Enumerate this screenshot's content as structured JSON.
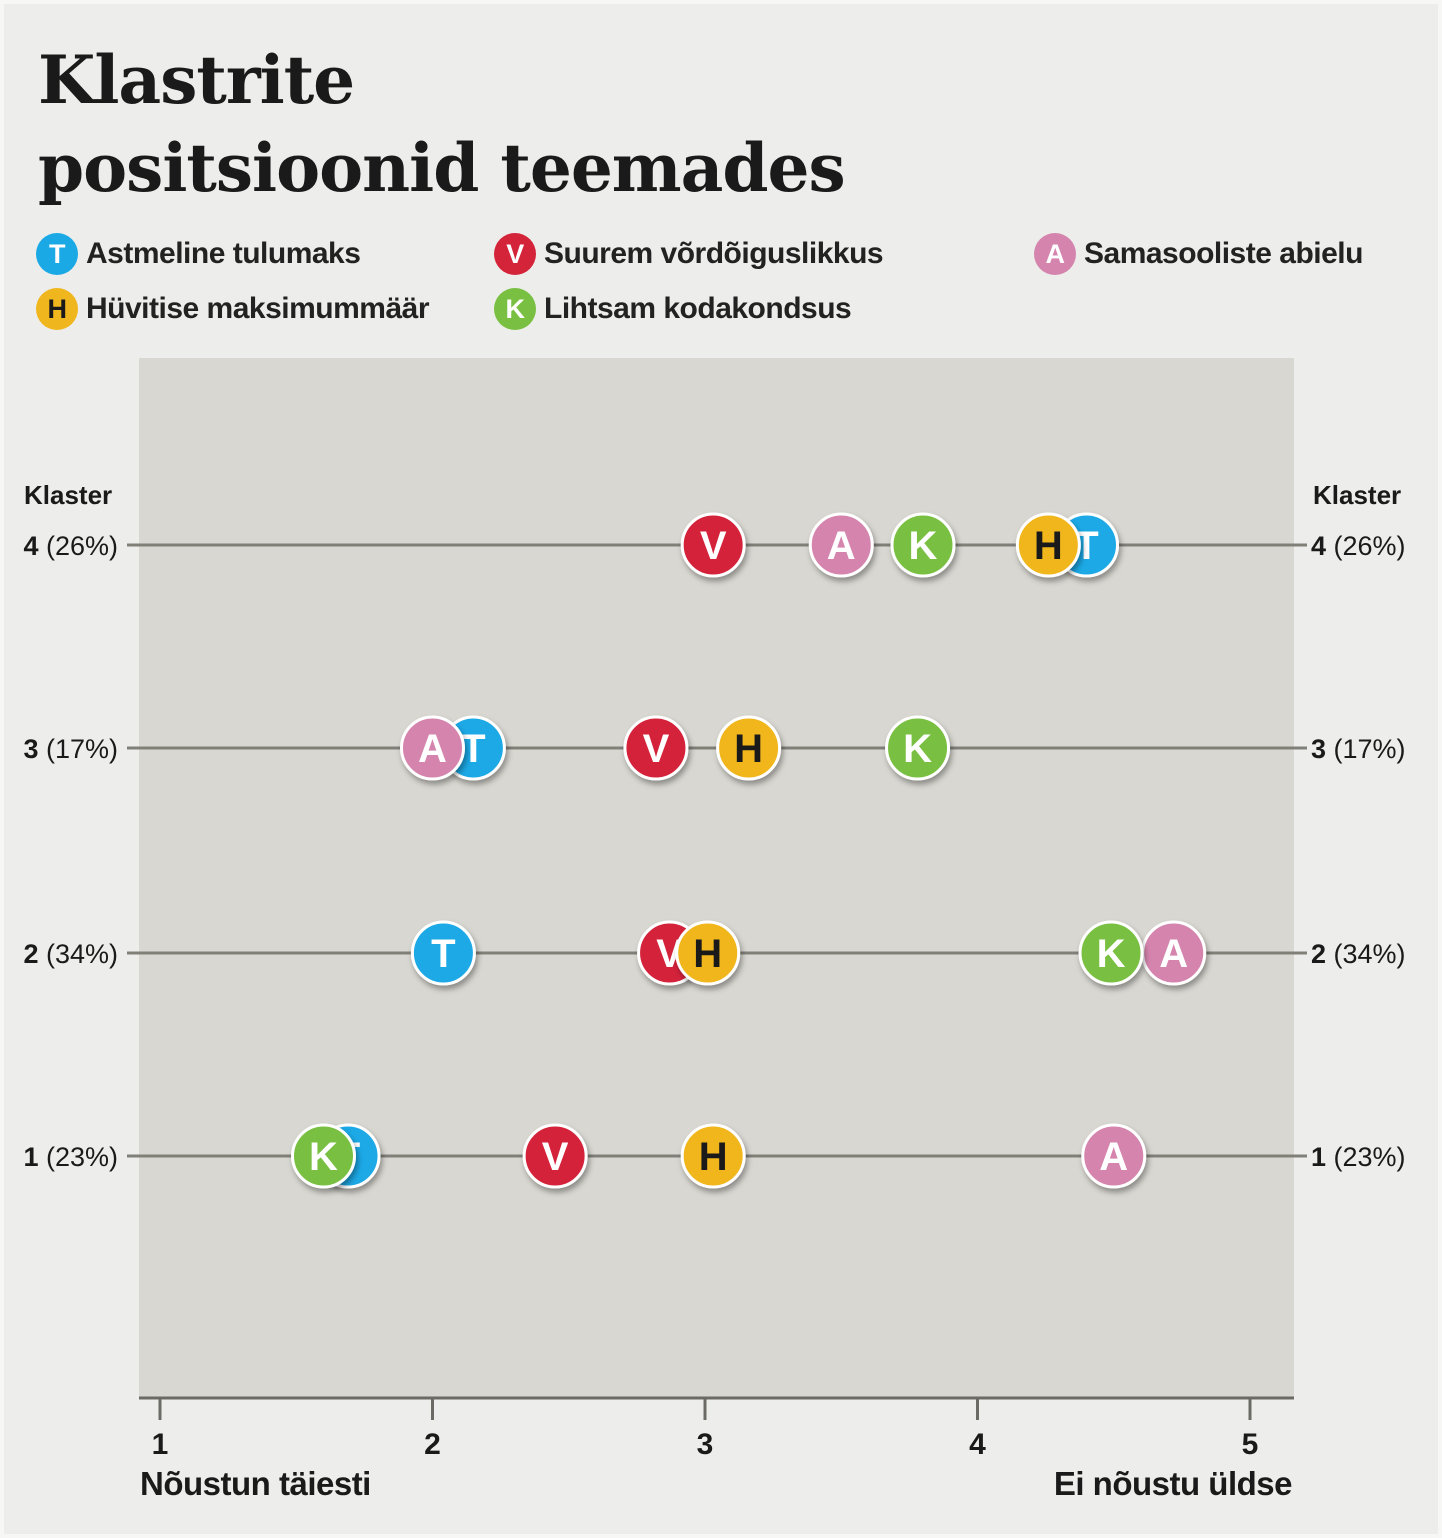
{
  "title_line1": "Klastrite",
  "title_line2": "positsioonid teemades",
  "legend": [
    {
      "letter": "T",
      "label": "Astmeline tulumaks",
      "color": "#1ba9e6"
    },
    {
      "letter": "V",
      "label": "Suurem võrdõiguslikkus",
      "color": "#d4243a"
    },
    {
      "letter": "A",
      "label": "Samasooliste abielu",
      "color": "#d584ad"
    },
    {
      "letter": "H",
      "label": "Hüvitise maksimummäär",
      "color": "#f0b61d"
    },
    {
      "letter": "K",
      "label": "Lihtsam kodakondsus",
      "color": "#79c042"
    }
  ],
  "chart_data": {
    "type": "scatter",
    "title": "Klastrite positsioonid teemades",
    "xlabel_left": "Nõustun täiesti",
    "xlabel_right": "Ei nõustu üldse",
    "x_ticks": [
      1,
      2,
      3,
      4,
      5
    ],
    "xlim": [
      0.92,
      5.16
    ],
    "y_header": "Klaster",
    "clusters": [
      {
        "label_num": "4",
        "label_pct": "(26%)",
        "points": [
          {
            "topic": "T",
            "x": 4.4
          },
          {
            "topic": "H",
            "x": 4.26
          },
          {
            "topic": "K",
            "x": 3.8
          },
          {
            "topic": "A",
            "x": 3.5
          },
          {
            "topic": "V",
            "x": 3.03
          }
        ]
      },
      {
        "label_num": "3",
        "label_pct": "(17%)",
        "points": [
          {
            "topic": "T",
            "x": 2.15
          },
          {
            "topic": "A",
            "x": 2.0
          },
          {
            "topic": "K",
            "x": 3.78
          },
          {
            "topic": "H",
            "x": 3.16
          },
          {
            "topic": "V",
            "x": 2.82
          }
        ]
      },
      {
        "label_num": "2",
        "label_pct": "(34%)",
        "points": [
          {
            "topic": "A",
            "x": 4.72
          },
          {
            "topic": "K",
            "x": 4.49
          },
          {
            "topic": "V",
            "x": 2.87
          },
          {
            "topic": "H",
            "x": 3.01
          },
          {
            "topic": "T",
            "x": 2.04
          }
        ]
      },
      {
        "label_num": "1",
        "label_pct": "(23%)",
        "points": [
          {
            "topic": "T",
            "x": 1.69
          },
          {
            "topic": "K",
            "x": 1.6
          },
          {
            "topic": "V",
            "x": 2.45
          },
          {
            "topic": "H",
            "x": 3.03
          },
          {
            "topic": "A",
            "x": 4.5
          }
        ]
      }
    ]
  }
}
